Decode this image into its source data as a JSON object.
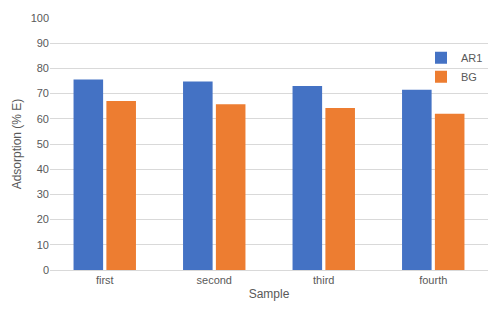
{
  "chart_data": {
    "type": "bar",
    "x_label": "Sample",
    "y_label": "Adsorption (% E)",
    "categories": [
      "first",
      "second",
      "third",
      "fourth"
    ],
    "series": [
      {
        "name": "AR1",
        "color": "#4472c4",
        "values": [
          75.6,
          74.8,
          73.0,
          71.5
        ]
      },
      {
        "name": "BG",
        "color": "#ed7d31",
        "values": [
          67.1,
          65.8,
          64.3,
          62.0
        ]
      }
    ],
    "ylim": [
      0,
      100
    ],
    "yticks": [
      0,
      10,
      20,
      30,
      40,
      50,
      60,
      70,
      80,
      90,
      100
    ],
    "grid": true,
    "legend": "upper right"
  }
}
